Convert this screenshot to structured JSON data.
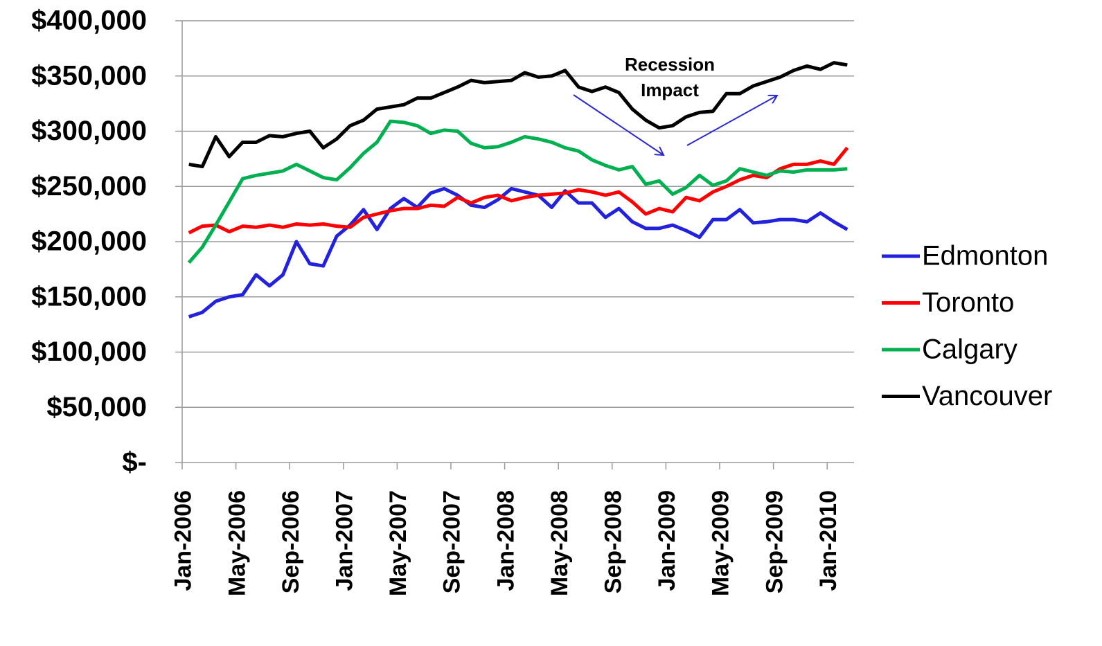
{
  "chart_data": {
    "type": "line",
    "categories": [
      "Jan-2006",
      null,
      null,
      null,
      "May-2006",
      null,
      null,
      null,
      "Sep-2006",
      null,
      null,
      null,
      "Jan-2007",
      null,
      null,
      null,
      "May-2007",
      null,
      null,
      null,
      "Sep-2007",
      null,
      null,
      null,
      "Jan-2008",
      null,
      null,
      null,
      "May-2008",
      null,
      null,
      null,
      "Sep-2008",
      null,
      null,
      null,
      "Jan-2009",
      null,
      null,
      null,
      "May-2009",
      null,
      null,
      null,
      "Sep-2009",
      null,
      null,
      null,
      "Jan-2010",
      null
    ],
    "series": [
      {
        "name": "Edmonton",
        "color": "#2222dd",
        "values": [
          132000,
          136000,
          146000,
          150000,
          152000,
          170000,
          160000,
          170000,
          200000,
          180000,
          178000,
          205000,
          215000,
          229000,
          211000,
          230000,
          239000,
          231000,
          244000,
          248000,
          242000,
          233000,
          231000,
          238000,
          248000,
          245000,
          242000,
          231000,
          246000,
          235000,
          235000,
          222000,
          230000,
          218000,
          212000,
          212000,
          215000,
          210000,
          204000,
          220000,
          220000,
          229000,
          217000,
          218000,
          220000,
          220000,
          218000,
          226000,
          218000,
          211000
        ]
      },
      {
        "name": "Toronto",
        "color": "#ff0000",
        "values": [
          208000,
          214000,
          215000,
          209000,
          214000,
          213000,
          215000,
          213000,
          216000,
          215000,
          216000,
          214000,
          213000,
          222000,
          225000,
          228000,
          230000,
          230000,
          233000,
          232000,
          240000,
          235000,
          240000,
          242000,
          237000,
          240000,
          242000,
          243000,
          244000,
          247000,
          245000,
          242000,
          245000,
          236000,
          225000,
          230000,
          227000,
          240000,
          237000,
          245000,
          250000,
          256000,
          260000,
          258000,
          266000,
          270000,
          270000,
          273000,
          270000,
          285000
        ]
      },
      {
        "name": "Calgary",
        "color": "#00b050",
        "values": [
          181000,
          195000,
          215000,
          236000,
          257000,
          260000,
          262000,
          264000,
          270000,
          264000,
          258000,
          256000,
          267000,
          280000,
          290000,
          309000,
          308000,
          305000,
          298000,
          301000,
          300000,
          289000,
          285000,
          286000,
          290000,
          295000,
          293000,
          290000,
          285000,
          282000,
          274000,
          269000,
          265000,
          268000,
          252000,
          255000,
          243000,
          249000,
          260000,
          251000,
          255000,
          266000,
          263000,
          260000,
          264000,
          263000,
          265000,
          265000,
          265000,
          266000
        ]
      },
      {
        "name": "Vancouver",
        "color": "#000000",
        "values": [
          270000,
          268000,
          295000,
          277000,
          290000,
          290000,
          296000,
          295000,
          298000,
          300000,
          285000,
          293000,
          305000,
          310000,
          320000,
          322000,
          324000,
          330000,
          330000,
          335000,
          340000,
          346000,
          344000,
          345000,
          346000,
          353000,
          349000,
          350000,
          355000,
          340000,
          336000,
          340000,
          335000,
          320000,
          310000,
          303000,
          305000,
          313000,
          317000,
          318000,
          334000,
          334000,
          341000,
          345000,
          349000,
          355000,
          359000,
          356000,
          362000,
          360000
        ]
      }
    ],
    "ylim": [
      0,
      400000
    ],
    "yticks": [
      {
        "value": 0,
        "label": "$-"
      },
      {
        "value": 50000,
        "label": "$50,000"
      },
      {
        "value": 100000,
        "label": "$100,000"
      },
      {
        "value": 150000,
        "label": "$150,000"
      },
      {
        "value": 200000,
        "label": "$200,000"
      },
      {
        "value": 250000,
        "label": "$250,000"
      },
      {
        "value": 300000,
        "label": "$300,000"
      },
      {
        "value": 350000,
        "label": "$350,000"
      },
      {
        "value": 400000,
        "label": "$400,000"
      }
    ],
    "grid": true,
    "legend": "right",
    "annotations": [
      "Recession",
      "Impact"
    ]
  }
}
